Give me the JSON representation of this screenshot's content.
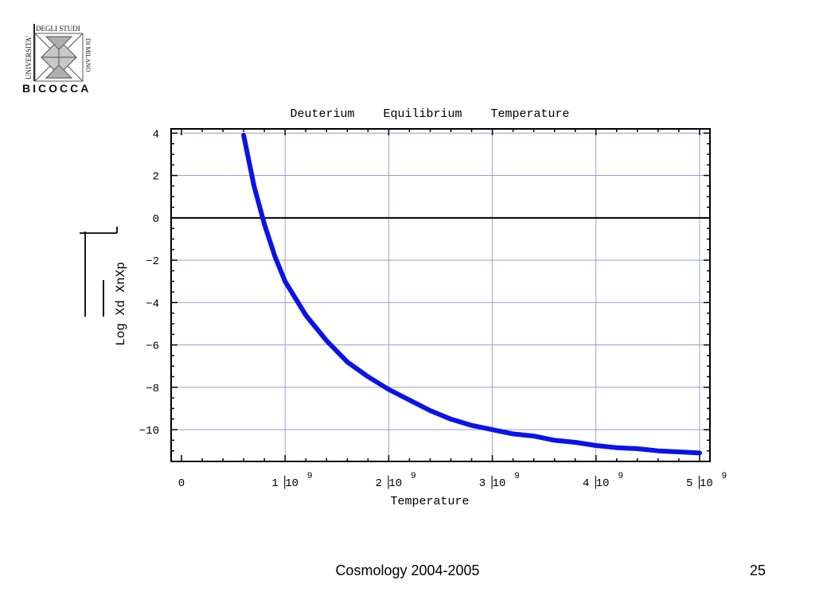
{
  "logo": {
    "line1": "UNIVERSITA'",
    "line2": "DEGLI STUDI",
    "line3": "DI MILANO",
    "name": "BICOCCA"
  },
  "chart_data": {
    "type": "line",
    "title": "Deuterium    Equilibrium    Temperature",
    "xlabel": "Temperature",
    "ylabel": "Log Xd XnXp",
    "xlim": [
      -0.1,
      5.1
    ],
    "ylim": [
      -11.5,
      4.2
    ],
    "x_ticks": [
      {
        "value": 0,
        "label": "0",
        "exp": ""
      },
      {
        "value": 1,
        "label": "1▕10",
        "exp": "9"
      },
      {
        "value": 2,
        "label": "2▕10",
        "exp": "9"
      },
      {
        "value": 3,
        "label": "3▕10",
        "exp": "9"
      },
      {
        "value": 4,
        "label": "4▕10",
        "exp": "9"
      },
      {
        "value": 5,
        "label": "5▕10",
        "exp": "9"
      }
    ],
    "y_ticks": [
      4,
      2,
      0,
      -2,
      -4,
      -6,
      -8,
      -10
    ],
    "x_unit_note": "x values in units of 10^9",
    "grid": true,
    "series": [
      {
        "color": "#0a14e6",
        "x": [
          0.6,
          0.7,
          0.8,
          0.9,
          1.0,
          1.2,
          1.4,
          1.6,
          1.8,
          2.0,
          2.2,
          2.4,
          2.6,
          2.8,
          3.0,
          3.2,
          3.4,
          3.6,
          3.8,
          4.0,
          4.2,
          4.4,
          4.6,
          4.8,
          5.0
        ],
        "y": [
          3.9,
          1.5,
          -0.3,
          -1.8,
          -3.0,
          -4.6,
          -5.8,
          -6.8,
          -7.5,
          -8.1,
          -8.6,
          -9.1,
          -9.5,
          -9.8,
          -10.0,
          -10.2,
          -10.3,
          -10.5,
          -10.6,
          -10.75,
          -10.85,
          -10.9,
          -11.0,
          -11.05,
          -11.1
        ]
      }
    ]
  },
  "footer": {
    "title": "Cosmology 2004-2005",
    "page": "25"
  }
}
